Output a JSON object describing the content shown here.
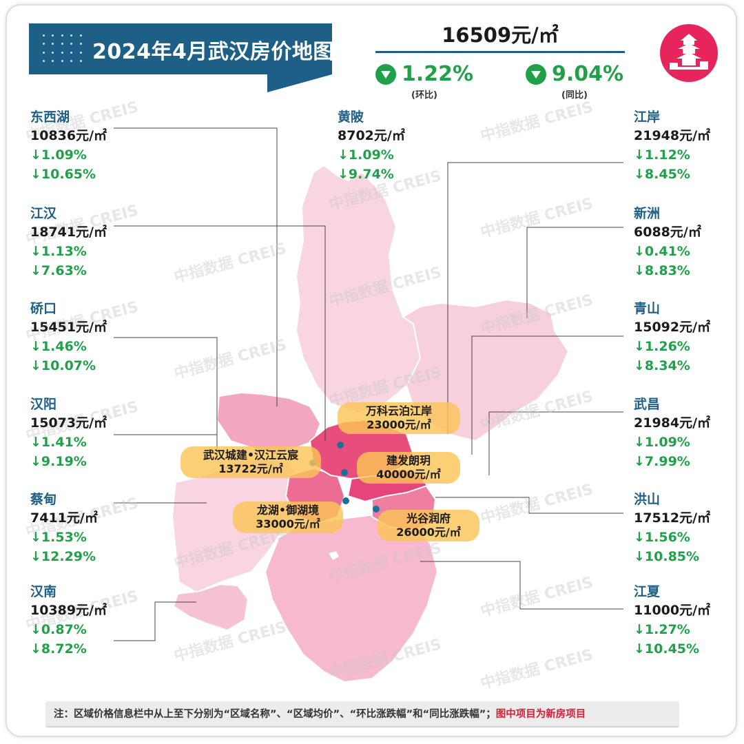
{
  "title": "2024年4月武汉房价地图",
  "city_average": {
    "price": "16509元/㎡",
    "mom_value": "1.22%",
    "mom_label": "(环比)",
    "yoy_value": "9.04%",
    "yoy_label": "(同比)"
  },
  "watermark": "中指数据 CREIS",
  "districts": {
    "dongxihu": {
      "name": "东西湖",
      "price": "10836元/㎡",
      "mom": "↓1.09%",
      "yoy": "↓10.65%"
    },
    "jianghan": {
      "name": "江汉",
      "price": "18741元/㎡",
      "mom": "↓1.13%",
      "yoy": "↓7.63%"
    },
    "qiaokou": {
      "name": "硚口",
      "price": "15451元/㎡",
      "mom": "↓1.46%",
      "yoy": "↓10.07%"
    },
    "hanyang": {
      "name": "汉阳",
      "price": "15073元/㎡",
      "mom": "↓1.41%",
      "yoy": "↓9.19%"
    },
    "caidian": {
      "name": "蔡甸",
      "price": "7411元/㎡",
      "mom": "↓1.53%",
      "yoy": "↓12.29%"
    },
    "hannan": {
      "name": "汉南",
      "price": "10389元/㎡",
      "mom": "↓0.87%",
      "yoy": "↓8.72%"
    },
    "huangpi": {
      "name": "黄陂",
      "price": "8702元/㎡",
      "mom": "↓1.09%",
      "yoy": "↓9.74%"
    },
    "jiangan": {
      "name": "江岸",
      "price": "21948元/㎡",
      "mom": "↓1.12%",
      "yoy": "↓8.45%"
    },
    "xinzhou": {
      "name": "新洲",
      "price": "6088元/㎡",
      "mom": "↓0.41%",
      "yoy": "↓8.83%"
    },
    "qingshan": {
      "name": "青山",
      "price": "15092元/㎡",
      "mom": "↓1.26%",
      "yoy": "↓8.34%"
    },
    "wuchang": {
      "name": "武昌",
      "price": "21984元/㎡",
      "mom": "↓1.09%",
      "yoy": "↓7.99%"
    },
    "hongshan": {
      "name": "洪山",
      "price": "17512元/㎡",
      "mom": "↓1.56%",
      "yoy": "↓10.85%"
    },
    "jiangxia": {
      "name": "江夏",
      "price": "11000元/㎡",
      "mom": "↓1.27%",
      "yoy": "↓10.45%"
    }
  },
  "projects": {
    "vanke": {
      "name": "万科云泊江岸",
      "price": "23000元/㎡"
    },
    "wuhan_urban": {
      "name": "武汉城建•汉江云宸",
      "price": "13722元/㎡"
    },
    "jianfa": {
      "name": "建发朗玥",
      "price": "40000元/㎡"
    },
    "longhu": {
      "name": "龙湖•御湖境",
      "price": "33000元/㎡"
    },
    "guanggu": {
      "name": "光谷润府",
      "price": "26000元/㎡"
    }
  },
  "note": {
    "text": "注：区域价格信息栏中从上至下分别为“区域名称”、“区域均价”、“环比涨跌幅”和“同比涨跌幅”；",
    "highlight": "图中项目为新房项目"
  },
  "colors": {
    "title_bg": "#1d5f86",
    "district_name": "#1d5f86",
    "decline_green": "#21a04a",
    "logo_pink": "#e8245c",
    "core_district": "#e84d7c",
    "suburb_district": "#f7c6d6",
    "project_pill": "#fac458",
    "note_highlight": "#d1203a"
  },
  "icons": {
    "city_logo": "yellow-crane-tower-icon",
    "decline": "down-triangle-circle-icon"
  }
}
